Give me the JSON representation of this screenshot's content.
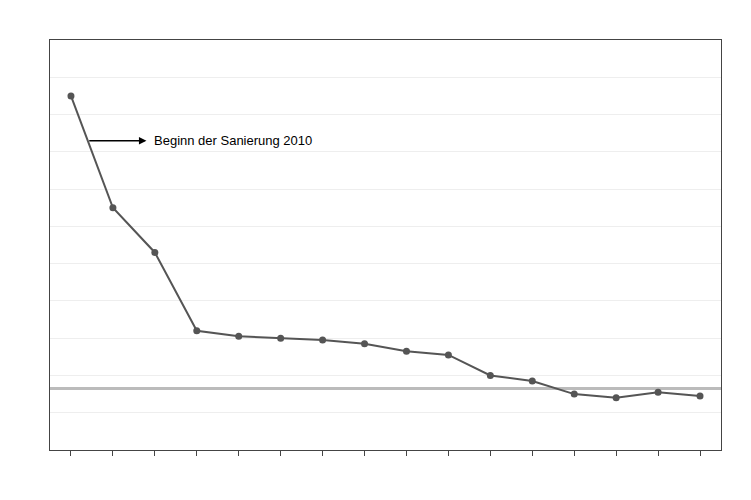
{
  "chart_data": {
    "type": "line",
    "x": [
      1,
      2,
      3,
      4,
      5,
      6,
      7,
      8,
      9,
      10,
      11,
      12,
      13,
      14,
      15,
      16
    ],
    "values": [
      9.5,
      6.5,
      5.3,
      3.2,
      3.05,
      3.0,
      2.95,
      2.85,
      2.65,
      2.55,
      2.0,
      1.85,
      1.5,
      1.4,
      1.55,
      1.45
    ],
    "color": "#555555",
    "marker": "circle",
    "line_style": "solid",
    "reference_line": {
      "y": 1.65,
      "color": "#bbbbbb"
    },
    "annotations": [
      {
        "text": "Beginn der Sanierung 2010",
        "x": 2.8,
        "y": 8.3,
        "arrow_from": [
          1.4,
          8.3
        ]
      }
    ],
    "xlim": [
      0.5,
      16.5
    ],
    "xticks": [
      1,
      2,
      3,
      4,
      5,
      6,
      7,
      8,
      9,
      10,
      11,
      12,
      13,
      14,
      15,
      16
    ],
    "ylim": [
      0,
      11.0
    ],
    "yticks": [
      0,
      1,
      2,
      3,
      4,
      5,
      6,
      7,
      8,
      9,
      10,
      11
    ],
    "grid": "y",
    "tick_labels": false
  }
}
